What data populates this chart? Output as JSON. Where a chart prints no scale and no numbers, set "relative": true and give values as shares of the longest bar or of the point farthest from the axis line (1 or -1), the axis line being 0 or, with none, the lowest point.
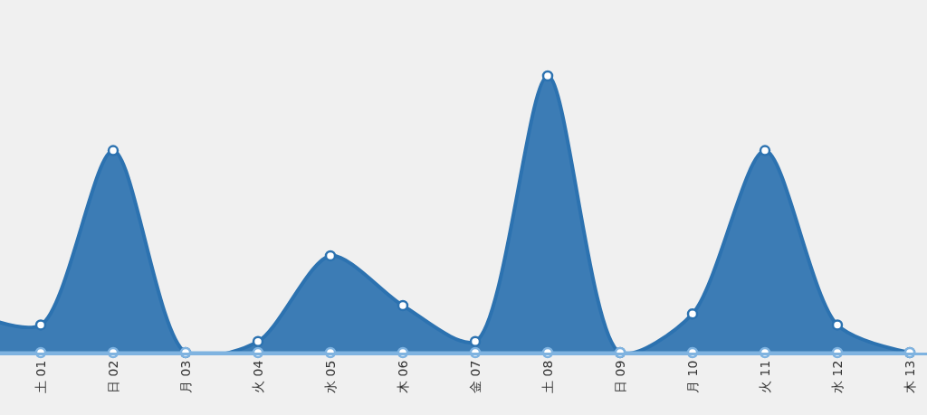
{
  "chart_data": {
    "type": "area",
    "relative": true,
    "categories": [
      null,
      "土 01",
      "日 02",
      "月 03",
      "火 04",
      "水 05",
      "木 06",
      "金 07",
      "土 08",
      "日 09",
      "月 10",
      "火 11",
      "水 12",
      "木 13"
    ],
    "series": [
      {
        "color": "#2c72b0",
        "values": [
          0.15,
          0.1,
          0.73,
          0,
          0.04,
          0.35,
          0.17,
          0.04,
          1,
          0,
          0.14,
          0.73,
          0.1,
          0
        ]
      },
      {
        "type": "line",
        "color": "#7fb3e0",
        "values": [
          0,
          0,
          0,
          0,
          0,
          0,
          0,
          0,
          0,
          0,
          0,
          0,
          0,
          0
        ]
      }
    ],
    "marker": "circle",
    "grid": false
  }
}
